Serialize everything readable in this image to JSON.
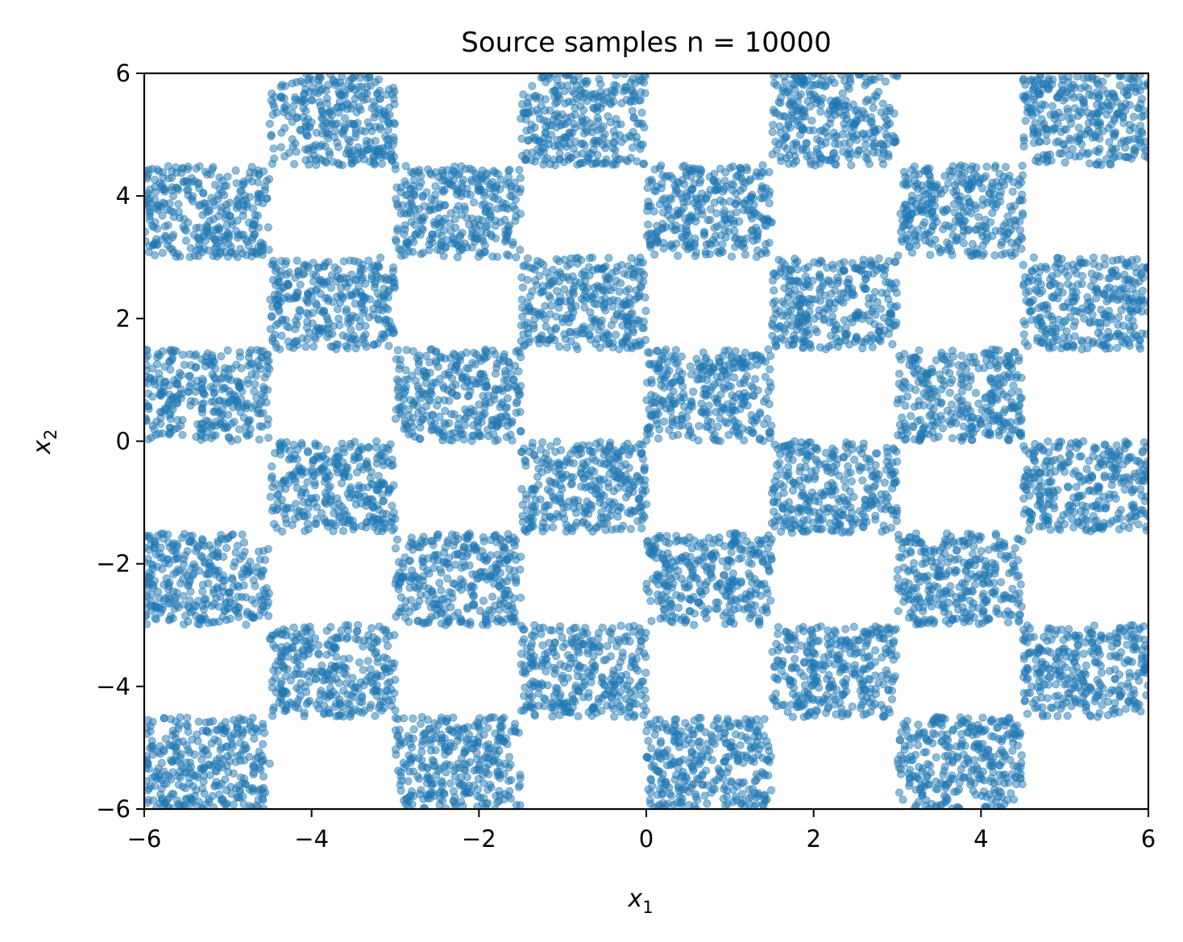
{
  "chart_data": {
    "type": "scatter",
    "title": "Source samples n = 10000",
    "xlabel": {
      "base": "x",
      "sub": "1"
    },
    "ylabel": {
      "base": "x",
      "sub": "2"
    },
    "xlim": [
      -6,
      6
    ],
    "ylim": [
      -6,
      6
    ],
    "xticks": [
      -6,
      -4,
      -2,
      0,
      2,
      4,
      6
    ],
    "yticks": [
      -6,
      -4,
      -2,
      0,
      2,
      4,
      6
    ],
    "xtick_labels": [
      "−6",
      "−4",
      "−2",
      "0",
      "2",
      "4",
      "6"
    ],
    "ytick_labels": [
      "−6",
      "−4",
      "−2",
      "0",
      "2",
      "4",
      "6"
    ],
    "grid": false,
    "legend": "none",
    "n_points": 10000,
    "series": [
      {
        "color": "#1f77b4",
        "alpha": 0.5,
        "regions": [
          {
            "x": [
              -4.5,
              -3.0
            ],
            "y": [
              4.5,
              6.0
            ]
          },
          {
            "x": [
              -1.5,
              0.0
            ],
            "y": [
              4.5,
              6.0
            ]
          },
          {
            "x": [
              1.5,
              3.0
            ],
            "y": [
              4.5,
              6.0
            ]
          },
          {
            "x": [
              4.5,
              6.0
            ],
            "y": [
              4.5,
              6.0
            ]
          },
          {
            "x": [
              -6.0,
              -4.5
            ],
            "y": [
              3.0,
              4.5
            ]
          },
          {
            "x": [
              -3.0,
              -1.5
            ],
            "y": [
              3.0,
              4.5
            ]
          },
          {
            "x": [
              0.0,
              1.5
            ],
            "y": [
              3.0,
              4.5
            ]
          },
          {
            "x": [
              3.0,
              4.5
            ],
            "y": [
              3.0,
              4.5
            ]
          },
          {
            "x": [
              -4.5,
              -3.0
            ],
            "y": [
              1.5,
              3.0
            ]
          },
          {
            "x": [
              -1.5,
              0.0
            ],
            "y": [
              1.5,
              3.0
            ]
          },
          {
            "x": [
              1.5,
              3.0
            ],
            "y": [
              1.5,
              3.0
            ]
          },
          {
            "x": [
              4.5,
              6.0
            ],
            "y": [
              1.5,
              3.0
            ]
          },
          {
            "x": [
              -6.0,
              -4.5
            ],
            "y": [
              0.0,
              1.5
            ]
          },
          {
            "x": [
              -3.0,
              -1.5
            ],
            "y": [
              0.0,
              1.5
            ]
          },
          {
            "x": [
              0.0,
              1.5
            ],
            "y": [
              0.0,
              1.5
            ]
          },
          {
            "x": [
              3.0,
              4.5
            ],
            "y": [
              0.0,
              1.5
            ]
          },
          {
            "x": [
              -4.5,
              -3.0
            ],
            "y": [
              -1.5,
              0.0
            ]
          },
          {
            "x": [
              -1.5,
              0.0
            ],
            "y": [
              -1.5,
              0.0
            ]
          },
          {
            "x": [
              1.5,
              3.0
            ],
            "y": [
              -1.5,
              0.0
            ]
          },
          {
            "x": [
              4.5,
              6.0
            ],
            "y": [
              -1.5,
              0.0
            ]
          },
          {
            "x": [
              -6.0,
              -4.5
            ],
            "y": [
              -3.0,
              -1.5
            ]
          },
          {
            "x": [
              -3.0,
              -1.5
            ],
            "y": [
              -3.0,
              -1.5
            ]
          },
          {
            "x": [
              0.0,
              1.5
            ],
            "y": [
              -3.0,
              -1.5
            ]
          },
          {
            "x": [
              3.0,
              4.5
            ],
            "y": [
              -3.0,
              -1.5
            ]
          },
          {
            "x": [
              -4.5,
              -3.0
            ],
            "y": [
              -4.5,
              -3.0
            ]
          },
          {
            "x": [
              -1.5,
              0.0
            ],
            "y": [
              -4.5,
              -3.0
            ]
          },
          {
            "x": [
              1.5,
              3.0
            ],
            "y": [
              -4.5,
              -3.0
            ]
          },
          {
            "x": [
              4.5,
              6.0
            ],
            "y": [
              -4.5,
              -3.0
            ]
          },
          {
            "x": [
              -6.0,
              -4.5
            ],
            "y": [
              -6.0,
              -4.5
            ]
          },
          {
            "x": [
              -3.0,
              -1.5
            ],
            "y": [
              -6.0,
              -4.5
            ]
          },
          {
            "x": [
              0.0,
              1.5
            ],
            "y": [
              -6.0,
              -4.5
            ]
          },
          {
            "x": [
              3.0,
              4.5
            ],
            "y": [
              -6.0,
              -4.5
            ]
          }
        ]
      }
    ]
  }
}
